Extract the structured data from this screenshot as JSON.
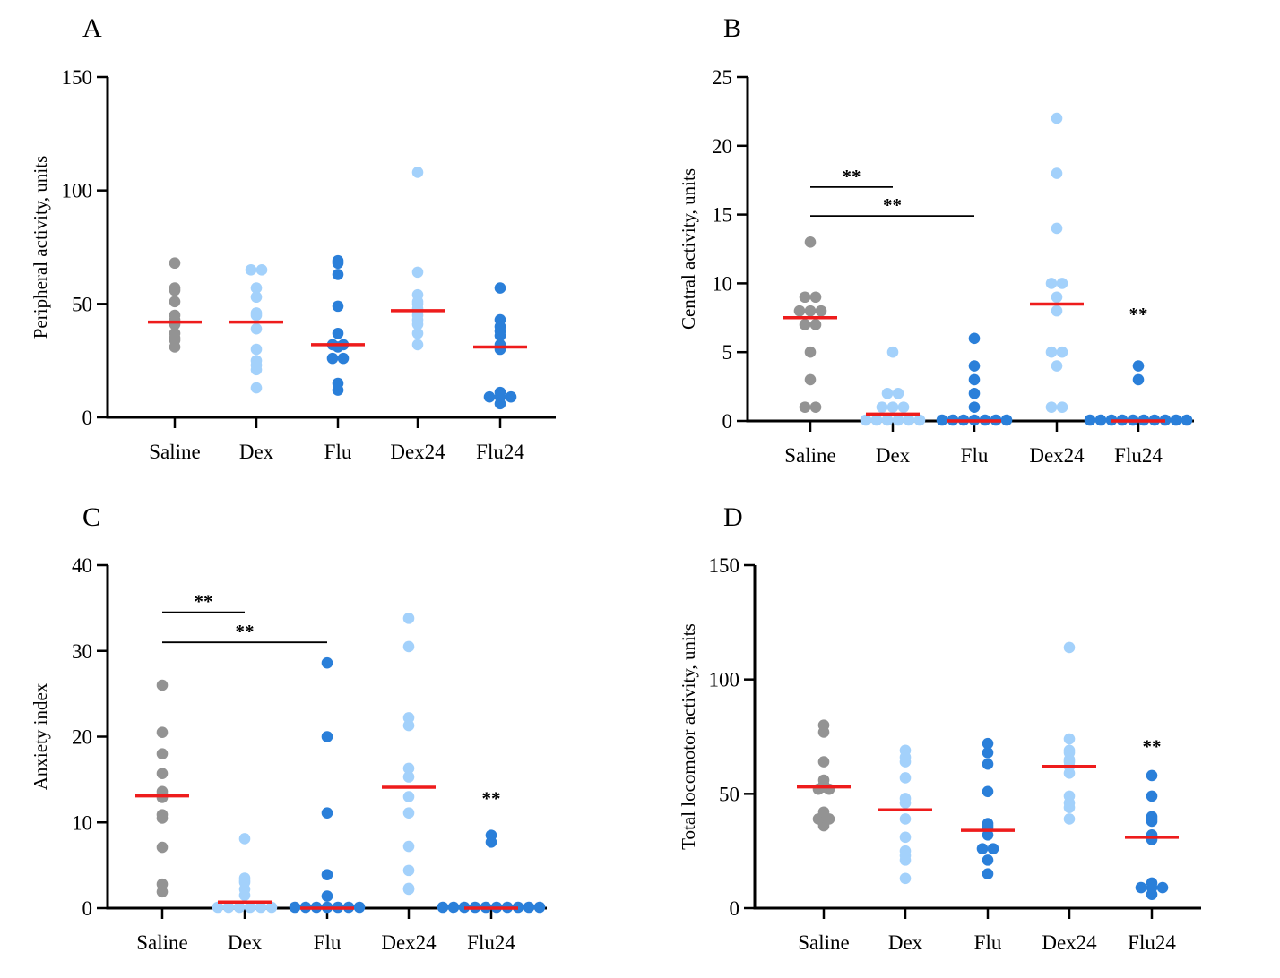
{
  "colors": {
    "Saline": "#939393",
    "Dex": "#a3d1fb",
    "Flu": "#2a7fd9",
    "Dex24": "#a3d1fb",
    "Flu24": "#2a7fd9",
    "mean_line": "#ee1c1c",
    "axis": "#000000"
  },
  "chart_data": [
    {
      "type": "scatter",
      "panel": "A",
      "ylabel": "Peripheral activity, units",
      "ylim": [
        0,
        150
      ],
      "yticks": [
        0,
        50,
        100,
        150
      ],
      "categories": [
        "Saline",
        "Dex",
        "Flu",
        "Dex24",
        "Flu24"
      ],
      "series": [
        {
          "category": "Saline",
          "mean": 42,
          "values": [
            31,
            35,
            37,
            41,
            43,
            51,
            56,
            57,
            68,
            45,
            42,
            34
          ]
        },
        {
          "category": "Dex",
          "mean": 42,
          "values": [
            25,
            13,
            21,
            30,
            39,
            46,
            53,
            65,
            65,
            57,
            45,
            23
          ]
        },
        {
          "category": "Flu",
          "mean": 32,
          "values": [
            26,
            12,
            32,
            31,
            37,
            49,
            63,
            68,
            69,
            32,
            26,
            15
          ]
        },
        {
          "category": "Dex24",
          "mean": 47,
          "values": [
            45,
            32,
            41,
            47,
            50,
            54,
            64,
            108,
            51,
            43,
            37,
            48
          ]
        },
        {
          "category": "Flu24",
          "mean": 31,
          "values": [
            38,
            11,
            6,
            30,
            36,
            43,
            57,
            40,
            32,
            9,
            9,
            9
          ]
        }
      ],
      "annotations": []
    },
    {
      "type": "scatter",
      "panel": "B",
      "ylabel": "Central activity, units",
      "ylim": [
        0,
        25
      ],
      "yticks": [
        0,
        5,
        10,
        15,
        20,
        25
      ],
      "categories": [
        "Saline",
        "Dex",
        "Flu",
        "Dex24",
        "Flu24"
      ],
      "series": [
        {
          "category": "Saline",
          "mean": 7.5,
          "values": [
            1,
            3,
            5,
            7,
            8,
            8,
            9,
            9,
            8,
            13,
            7,
            1
          ]
        },
        {
          "category": "Dex",
          "mean": 0.5,
          "values": [
            0,
            0,
            0,
            0,
            0,
            1,
            1,
            1,
            2,
            2,
            5,
            0
          ]
        },
        {
          "category": "Flu",
          "mean": 0,
          "values": [
            0,
            0,
            0,
            0,
            0,
            0,
            1,
            2,
            3,
            4,
            6,
            0
          ]
        },
        {
          "category": "Dex24",
          "mean": 8.5,
          "values": [
            1,
            4,
            5,
            8,
            9,
            10,
            10,
            14,
            18,
            22,
            5,
            1
          ]
        },
        {
          "category": "Flu24",
          "mean": 0,
          "values": [
            0,
            0,
            0,
            0,
            0,
            0,
            0,
            0,
            0,
            3,
            4,
            0
          ]
        }
      ],
      "annotations": [
        {
          "text": "**",
          "from": "Saline",
          "to": "Dex",
          "y": 17
        },
        {
          "text": "**",
          "from": "Saline",
          "to": "Flu",
          "y": 14.9
        },
        {
          "text": "**",
          "at": "Flu24",
          "y": 7.8
        }
      ]
    },
    {
      "type": "scatter",
      "panel": "C",
      "ylabel": "Anxiety index",
      "ylim": [
        0,
        40
      ],
      "yticks": [
        0,
        10,
        20,
        30,
        40
      ],
      "categories": [
        "Saline",
        "Dex",
        "Flu",
        "Dex24",
        "Flu24"
      ],
      "series": [
        {
          "category": "Saline",
          "mean": 13.1,
          "values": [
            1.9,
            2.8,
            7.1,
            10.5,
            10.9,
            12.9,
            13.6,
            15.7,
            18.0,
            20.5,
            26.0,
            13.3
          ]
        },
        {
          "category": "Dex",
          "mean": 0.7,
          "values": [
            0,
            0,
            0,
            0,
            0,
            1.5,
            2.2,
            3.0,
            3.2,
            3.5,
            8.1,
            0
          ]
        },
        {
          "category": "Flu",
          "mean": 0,
          "values": [
            0,
            0,
            0,
            0,
            0,
            0,
            0,
            1.4,
            3.9,
            11.1,
            20.0,
            28.6
          ]
        },
        {
          "category": "Dex24",
          "mean": 14.1,
          "values": [
            2.2,
            2.3,
            4.4,
            7.2,
            11.1,
            13.0,
            15.3,
            16.3,
            21.3,
            22.2,
            30.5,
            33.8
          ]
        },
        {
          "category": "Flu24",
          "mean": 0,
          "values": [
            0,
            0,
            0,
            0,
            0,
            0,
            0,
            0,
            0,
            0,
            7.7,
            8.5
          ]
        }
      ],
      "annotations": [
        {
          "text": "**",
          "from": "Saline",
          "to": "Dex",
          "y": 34.5
        },
        {
          "text": "**",
          "from": "Saline",
          "to": "Flu",
          "y": 31.0
        },
        {
          "text": "**",
          "at": "Flu24",
          "y": 12.9
        }
      ]
    },
    {
      "type": "scatter",
      "panel": "D",
      "ylabel": "Total locomotor activity, units",
      "ylim": [
        0,
        150
      ],
      "yticks": [
        0,
        50,
        100,
        150
      ],
      "categories": [
        "Saline",
        "Dex",
        "Flu",
        "Dex24",
        "Flu24"
      ],
      "series": [
        {
          "category": "Saline",
          "mean": 53,
          "values": [
            36,
            39,
            39,
            42,
            52,
            52,
            53,
            56,
            64,
            77,
            80,
            54
          ]
        },
        {
          "category": "Dex",
          "mean": 43,
          "values": [
            13,
            21,
            23,
            25,
            31,
            39,
            46,
            48,
            57,
            64,
            66,
            69
          ]
        },
        {
          "category": "Flu",
          "mean": 34,
          "values": [
            15,
            21,
            26,
            26,
            32,
            35,
            36,
            37,
            51,
            63,
            68,
            72
          ]
        },
        {
          "category": "Dex24",
          "mean": 62,
          "values": [
            39,
            44,
            46,
            49,
            59,
            62,
            64,
            65,
            68,
            69,
            74,
            114
          ]
        },
        {
          "category": "Flu24",
          "mean": 31,
          "values": [
            6,
            9,
            9,
            9,
            11,
            30,
            32,
            38,
            39,
            40,
            49,
            58
          ]
        }
      ],
      "annotations": [
        {
          "text": "**",
          "at": "Flu24",
          "y": 71
        }
      ]
    }
  ]
}
